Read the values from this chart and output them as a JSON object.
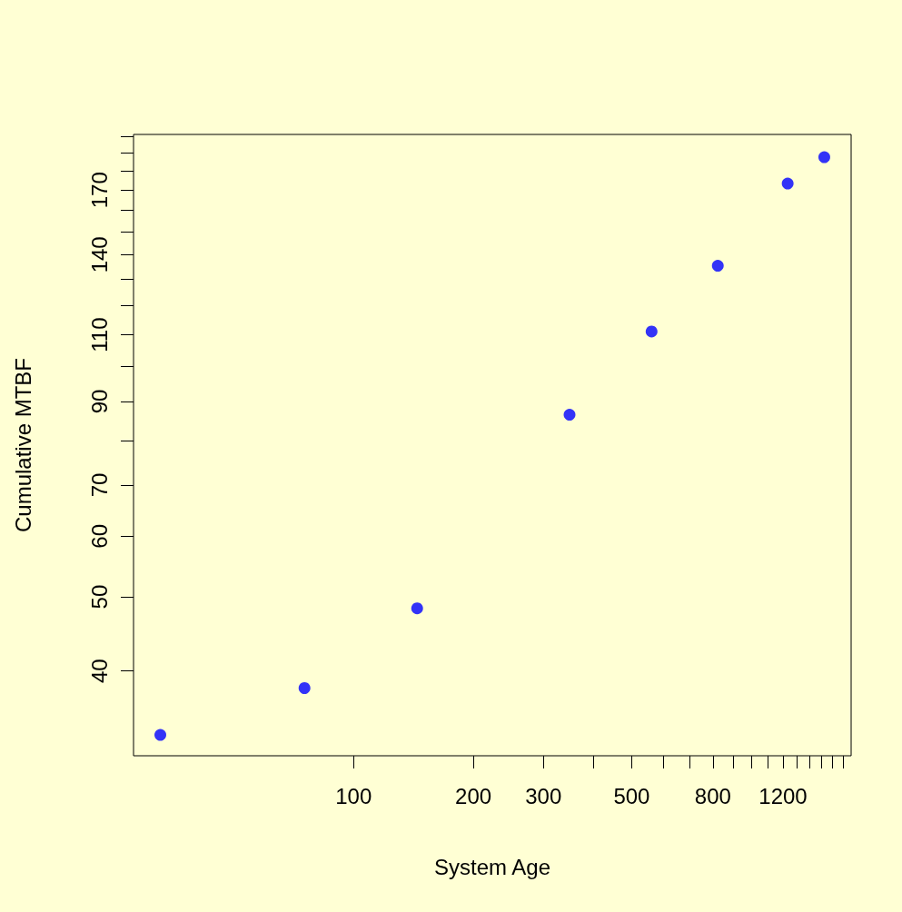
{
  "chart_data": {
    "type": "scatter",
    "xlabel": "System Age",
    "ylabel": "Cumulative MTBF",
    "log": "xy",
    "marker": "circle",
    "x": [
      32.7,
      75.3,
      144.5,
      349,
      561,
      823,
      1233,
      1524
    ],
    "series": [
      {
        "color": "#0000ff",
        "values": [
          33.0,
          38.0,
          48.3,
          86.5,
          111.1,
          135.4,
          173.4,
          187.7
        ]
      }
    ],
    "xlim": [
      28,
      1780
    ],
    "xticks": [
      100,
      200,
      300,
      {
        "value": 400,
        "label": null
      },
      500,
      {
        "value": 600,
        "label": null
      },
      {
        "value": 700,
        "label": null
      },
      800,
      {
        "value": 900,
        "label": null
      },
      {
        "value": 1000,
        "label": null
      },
      {
        "value": 1100,
        "label": null
      },
      1200,
      {
        "value": 1300,
        "label": null
      },
      {
        "value": 1400,
        "label": null
      },
      {
        "value": 1500,
        "label": null
      },
      {
        "value": 1600,
        "label": null
      },
      {
        "value": 1700,
        "label": null
      }
    ],
    "ylim": [
      31,
      201
    ],
    "yticks": [
      40,
      50,
      60,
      70,
      {
        "value": 80,
        "label": null
      },
      90,
      {
        "value": 100,
        "label": null
      },
      110,
      {
        "value": 120,
        "label": null
      },
      {
        "value": 130,
        "label": null
      },
      140,
      {
        "value": 150,
        "label": null
      },
      {
        "value": 160,
        "label": null
      },
      170,
      {
        "value": 180,
        "label": null
      },
      {
        "value": 190,
        "label": null
      },
      {
        "value": 200,
        "label": null
      }
    ]
  }
}
